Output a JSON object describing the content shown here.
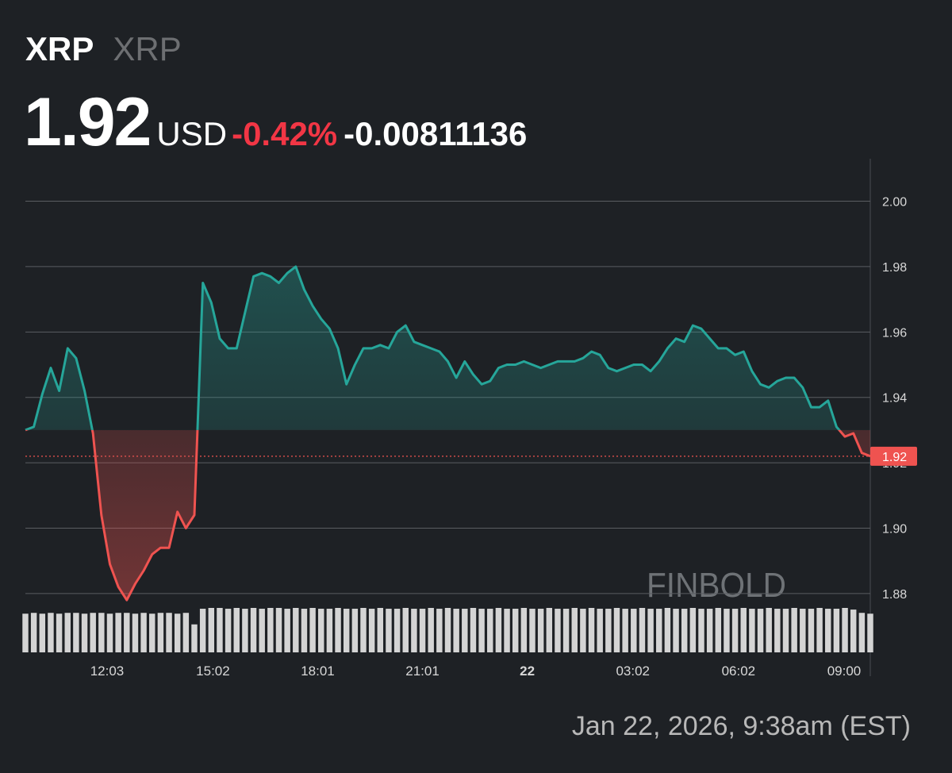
{
  "header": {
    "symbol": "XRP",
    "name": "XRP",
    "price": "1.92",
    "currency": "USD",
    "change_pct": "-0.42%",
    "change": "-0.00811136"
  },
  "footer": {
    "timestamp": "Jan 22, 2026, 9:38am (EST)"
  },
  "chart_data": {
    "type": "line",
    "watermark": "FINBOLD",
    "values": [
      1.93,
      1.931,
      1.941,
      1.949,
      1.942,
      1.955,
      1.952,
      1.942,
      1.929,
      1.904,
      1.889,
      1.882,
      1.878,
      1.883,
      1.887,
      1.892,
      1.894,
      1.894,
      1.905,
      1.9,
      1.904,
      1.975,
      1.969,
      1.958,
      1.955,
      1.955,
      1.966,
      1.977,
      1.978,
      1.977,
      1.975,
      1.978,
      1.98,
      1.973,
      1.968,
      1.964,
      1.961,
      1.955,
      1.944,
      1.95,
      1.955,
      1.955,
      1.956,
      1.955,
      1.96,
      1.962,
      1.957,
      1.956,
      1.955,
      1.954,
      1.951,
      1.946,
      1.951,
      1.947,
      1.944,
      1.945,
      1.949,
      1.95,
      1.95,
      1.951,
      1.95,
      1.949,
      1.95,
      1.951,
      1.951,
      1.951,
      1.952,
      1.954,
      1.953,
      1.949,
      1.948,
      1.949,
      1.95,
      1.95,
      1.948,
      1.951,
      1.955,
      1.958,
      1.957,
      1.962,
      1.961,
      1.958,
      1.955,
      1.955,
      1.953,
      1.954,
      1.948,
      1.944,
      1.943,
      1.945,
      1.946,
      1.946,
      1.943,
      1.937,
      1.937,
      1.939,
      1.931,
      1.928,
      1.929,
      1.923,
      1.922
    ],
    "volume": [
      47,
      48,
      47,
      48,
      47,
      48,
      48,
      47,
      48,
      48,
      47,
      48,
      48,
      47,
      48,
      47,
      48,
      48,
      47,
      48,
      34,
      53,
      54,
      54,
      53,
      54,
      53,
      54,
      53,
      54,
      54,
      53,
      54,
      53,
      54,
      53,
      53,
      54,
      53,
      53,
      54,
      53,
      54,
      53,
      53,
      54,
      53,
      53,
      54,
      53,
      54,
      53,
      53,
      54,
      53,
      53,
      54,
      53,
      53,
      54,
      53,
      53,
      54,
      53,
      53,
      54,
      53,
      54,
      53,
      53,
      54,
      53,
      53,
      54,
      53,
      53,
      54,
      53,
      53,
      54,
      53,
      53,
      54,
      53,
      53,
      54,
      53,
      53,
      54,
      53,
      53,
      54,
      53,
      53,
      54,
      53,
      53,
      54,
      52,
      48,
      47
    ],
    "colors": {
      "up": "#26a69a",
      "down": "#ef5350",
      "volume": "#d4d4d4"
    },
    "price_tag": {
      "value": 1.922,
      "label": "1.92"
    },
    "xlim": [
      0,
      100
    ],
    "xticks": [
      {
        "value": 9.67,
        "label": "12:03"
      },
      {
        "value": 22.2,
        "label": "15:02"
      },
      {
        "value": 34.6,
        "label": "18:01"
      },
      {
        "value": 47.0,
        "label": "21:01"
      },
      {
        "value": 59.4,
        "label": "22",
        "bold": true
      },
      {
        "value": 71.9,
        "label": "03:02"
      },
      {
        "value": 84.4,
        "label": "06:02"
      },
      {
        "value": 96.9,
        "label": "09:00"
      }
    ],
    "ylim": [
      1.862,
      2.013
    ],
    "yticks": [
      {
        "value": 2.0,
        "label": "2.00"
      },
      1.98,
      1.96,
      1.94,
      1.92,
      {
        "value": 1.9,
        "label": "1.90"
      },
      1.88
    ],
    "grid": true
  }
}
